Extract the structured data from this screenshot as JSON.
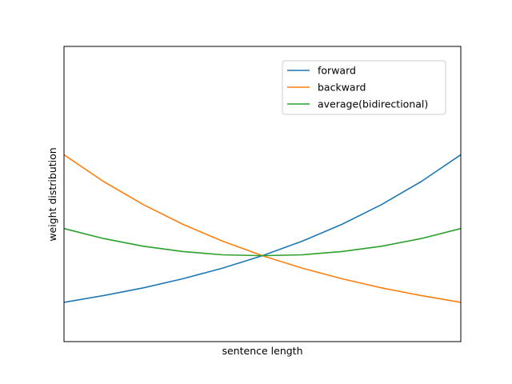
{
  "chart_data": {
    "type": "line",
    "title": "",
    "xlabel": "sentence length",
    "ylabel": "weight distribution",
    "xlim": [
      0,
      1
    ],
    "ylim": [
      0,
      1
    ],
    "grid": false,
    "xticks": [],
    "yticks": [],
    "legend": {
      "position": "top-right"
    },
    "x": [
      0,
      0.1,
      0.2,
      0.3,
      0.4,
      0.5,
      0.6,
      0.7,
      0.8,
      0.9,
      1.0
    ],
    "series": [
      {
        "name": "forward",
        "color": "#1f77b4",
        "values": [
          0.133,
          0.156,
          0.182,
          0.213,
          0.249,
          0.291,
          0.34,
          0.397,
          0.464,
          0.542,
          0.633
        ]
      },
      {
        "name": "backward",
        "color": "#ff7f0e",
        "values": [
          0.633,
          0.542,
          0.464,
          0.397,
          0.34,
          0.291,
          0.249,
          0.213,
          0.182,
          0.156,
          0.133
        ]
      },
      {
        "name": "average(bidirectional)",
        "color": "#2ca02c",
        "values": [
          0.383,
          0.349,
          0.323,
          0.305,
          0.294,
          0.291,
          0.294,
          0.305,
          0.323,
          0.349,
          0.383
        ]
      }
    ]
  }
}
